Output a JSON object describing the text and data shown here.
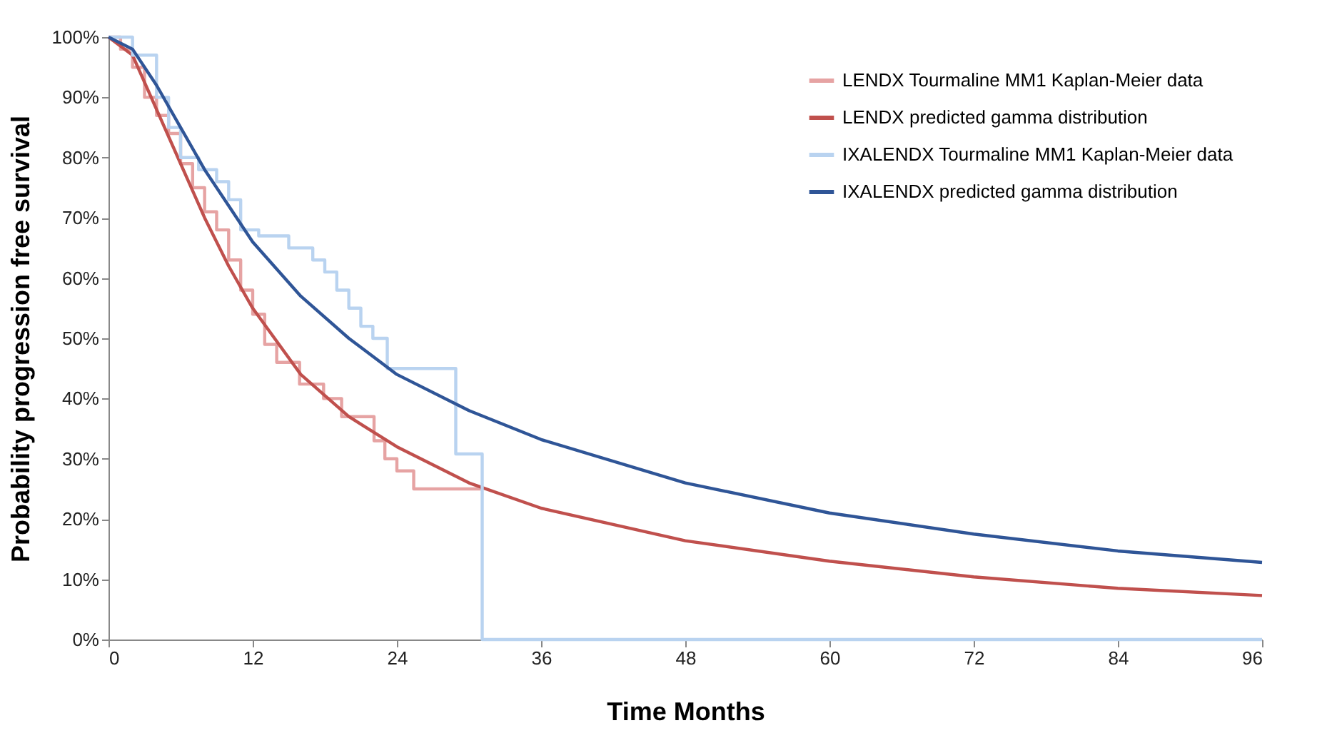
{
  "chart_data": {
    "type": "line",
    "xlabel": "Time Months",
    "ylabel": "Probability progression free survival",
    "xlim": [
      0,
      96
    ],
    "xticks": [
      0,
      12,
      24,
      36,
      48,
      60,
      72,
      84,
      96
    ],
    "ylim": [
      0,
      100
    ],
    "yticks": [
      {
        "value": 0,
        "label": "0%"
      },
      {
        "value": 10,
        "label": "10%"
      },
      {
        "value": 20,
        "label": "20%"
      },
      {
        "value": 30,
        "label": "30%"
      },
      {
        "value": 40,
        "label": "40%"
      },
      {
        "value": 50,
        "label": "50%"
      },
      {
        "value": 60,
        "label": "60%"
      },
      {
        "value": 70,
        "label": "70%"
      },
      {
        "value": 80,
        "label": "80%"
      },
      {
        "value": 90,
        "label": "90%"
      },
      {
        "value": 100,
        "label": "100%"
      }
    ],
    "grid": false,
    "legend": "top right",
    "marker": "none",
    "line_style": "solid",
    "series": [
      {
        "name": "LENDX Tourmaline MM1 Kaplan-Meier data",
        "type": "step",
        "color": "#e6a3a3",
        "x": [
          0,
          1,
          2,
          3,
          4,
          5,
          6,
          7,
          8,
          9,
          10,
          11,
          12,
          13,
          14,
          15.9,
          17.9,
          19.4,
          22.1,
          23,
          24,
          25.4,
          31.2
        ],
        "values": [
          100,
          98,
          95,
          90,
          87,
          84,
          79,
          75,
          71,
          68,
          63,
          58,
          54,
          49,
          46,
          42.4,
          40,
          37,
          33,
          30,
          28,
          25,
          25
        ]
      },
      {
        "name": "LENDX predicted gamma distribution",
        "color": "#c0504d",
        "x": [
          0,
          2,
          4,
          6,
          8,
          10,
          12,
          16,
          20,
          24,
          30,
          36,
          48,
          60,
          72,
          84,
          96
        ],
        "values": [
          100,
          97,
          88,
          79,
          70,
          62,
          55,
          44,
          37,
          32,
          26,
          21.8,
          16.4,
          13,
          10.4,
          8.5,
          7.3
        ]
      },
      {
        "name": "IXALENDX Tourmaline MM1 Kaplan-Meier data",
        "type": "step",
        "color": "#b9d3f0",
        "x": [
          0,
          2,
          4,
          5,
          6,
          7.5,
          9,
          10,
          11,
          12.5,
          15,
          17,
          18,
          19,
          20,
          21,
          22,
          23.2,
          28.9,
          31.1,
          96
        ],
        "values": [
          100,
          97,
          90,
          85,
          80,
          78,
          76,
          73,
          68,
          67,
          65,
          63,
          61,
          58,
          55,
          52,
          50,
          45,
          30.8,
          0,
          0
        ]
      },
      {
        "name": "IXALENDX predicted gamma distribution",
        "color": "#2f5597",
        "x": [
          0,
          2,
          4,
          6,
          8,
          10,
          12,
          16,
          20,
          24,
          30,
          36,
          48,
          60,
          72,
          84,
          96
        ],
        "values": [
          100,
          98,
          92,
          85,
          78,
          72,
          66,
          57,
          50,
          44,
          38,
          33.2,
          26,
          21,
          17.5,
          14.7,
          12.8
        ]
      }
    ]
  }
}
